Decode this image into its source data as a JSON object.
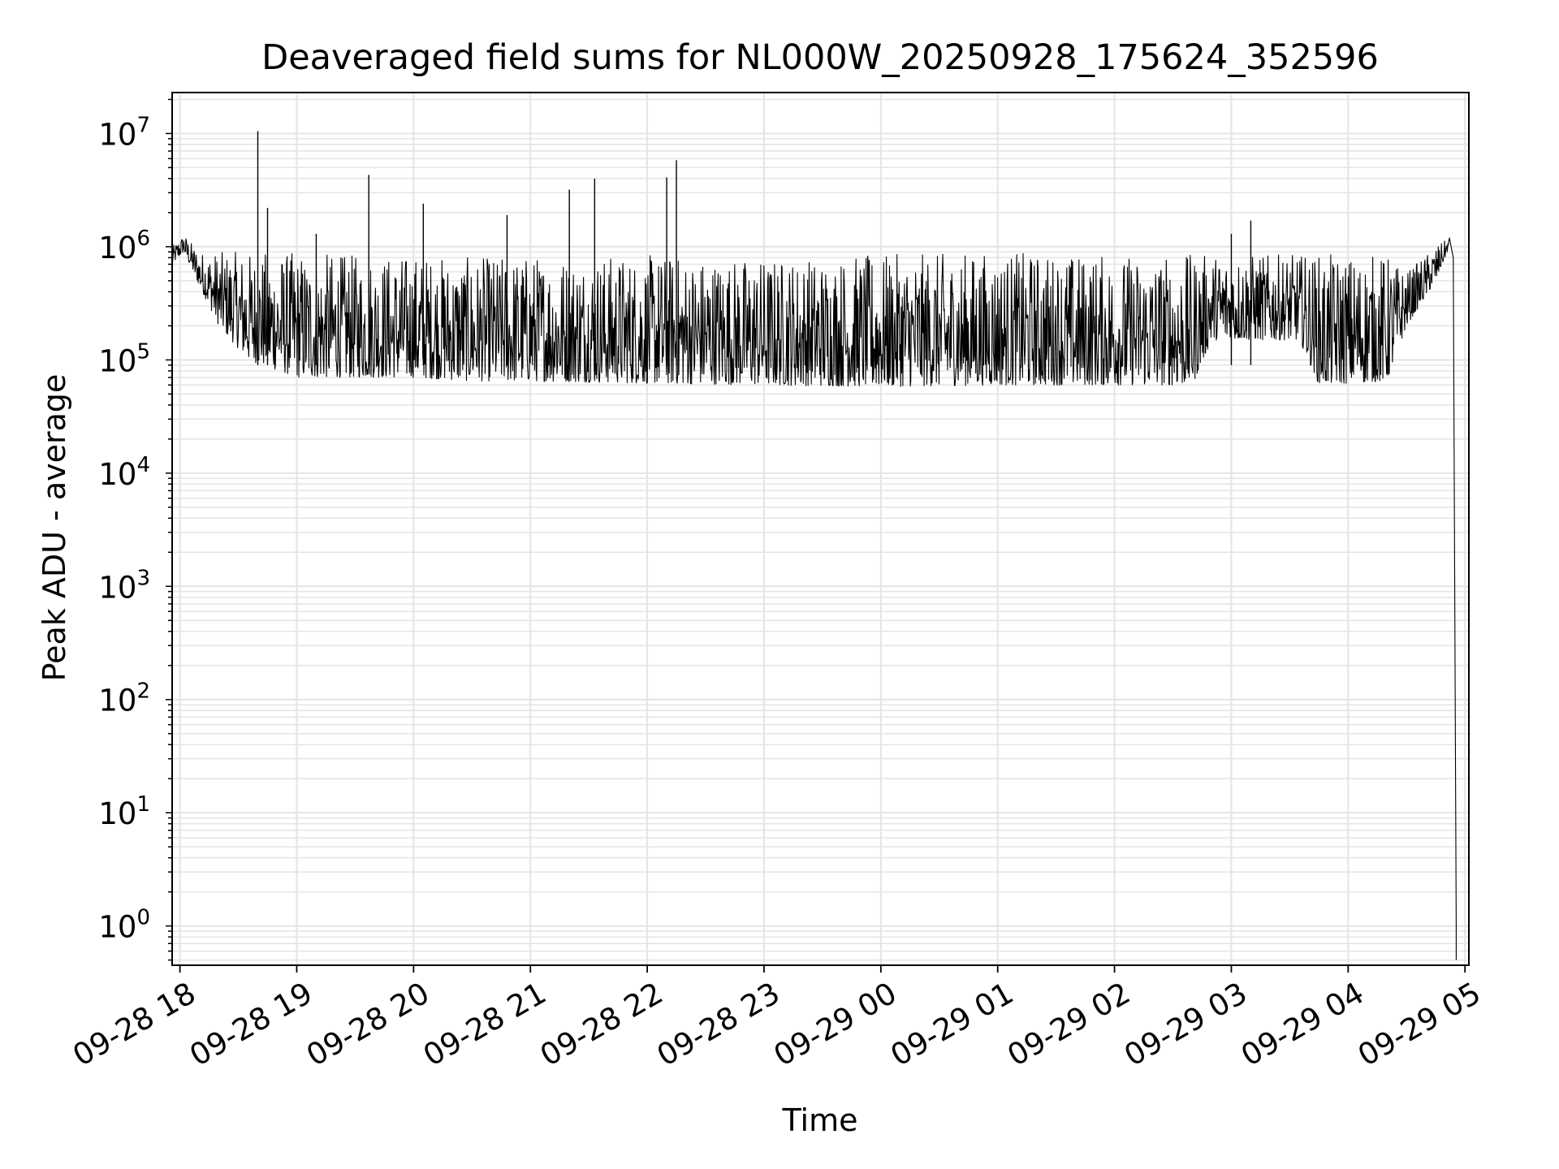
{
  "chart_data": {
    "type": "line",
    "title": "Deaveraged field sums for NL000W_20250928_175624_352596",
    "xlabel": "Time",
    "ylabel": "Peak ADU - average",
    "yscale": "log",
    "ylim": [
      0.45,
      23000000
    ],
    "xlim": [
      "2025-09-28T17:56:00",
      "2025-09-29T05:02:00"
    ],
    "grid": true,
    "legend": "none",
    "line_color": "#000000",
    "grid_color": "#e4e4e4",
    "xticks": [
      {
        "value": "2025-09-28T18:00:00",
        "label": "09-28 18"
      },
      {
        "value": "2025-09-28T19:00:00",
        "label": "09-28 19"
      },
      {
        "value": "2025-09-28T20:00:00",
        "label": "09-28 20"
      },
      {
        "value": "2025-09-28T21:00:00",
        "label": "09-28 21"
      },
      {
        "value": "2025-09-28T22:00:00",
        "label": "09-28 22"
      },
      {
        "value": "2025-09-28T23:00:00",
        "label": "09-28 23"
      },
      {
        "value": "2025-09-29T00:00:00",
        "label": "09-29 00"
      },
      {
        "value": "2025-09-29T01:00:00",
        "label": "09-29 01"
      },
      {
        "value": "2025-09-29T02:00:00",
        "label": "09-29 02"
      },
      {
        "value": "2025-09-29T03:00:00",
        "label": "09-29 03"
      },
      {
        "value": "2025-09-29T04:00:00",
        "label": "09-29 04"
      },
      {
        "value": "2025-09-29T05:00:00",
        "label": "09-29 05"
      }
    ],
    "yticks": [
      {
        "value": 1,
        "label_base": "10",
        "label_exp": "0"
      },
      {
        "value": 10,
        "label_base": "10",
        "label_exp": "1"
      },
      {
        "value": 100,
        "label_base": "10",
        "label_exp": "2"
      },
      {
        "value": 1000,
        "label_base": "10",
        "label_exp": "3"
      },
      {
        "value": 10000,
        "label_base": "10",
        "label_exp": "4"
      },
      {
        "value": 100000,
        "label_base": "10",
        "label_exp": "5"
      },
      {
        "value": 1000000,
        "label_base": "10",
        "label_exp": "6"
      },
      {
        "value": 10000000,
        "label_base": "10",
        "label_exp": "7"
      }
    ],
    "series": [
      {
        "envelope": [
          {
            "time": "2025-09-28T17:56:00",
            "low": 700000,
            "high": 1000000
          },
          {
            "time": "2025-09-28T18:02:00",
            "low": 900000,
            "high": 1300000
          },
          {
            "time": "2025-09-28T18:10:00",
            "low": 450000,
            "high": 900000
          },
          {
            "time": "2025-09-28T18:20:00",
            "low": 200000,
            "high": 900000
          },
          {
            "time": "2025-09-28T18:35:00",
            "low": 100000,
            "high": 900000
          },
          {
            "time": "2025-09-28T19:00:00",
            "low": 70000,
            "high": 900000
          },
          {
            "time": "2025-09-28T19:30:00",
            "low": 70000,
            "high": 850000
          },
          {
            "time": "2025-09-28T20:00:00",
            "low": 70000,
            "high": 850000
          },
          {
            "time": "2025-09-28T20:30:00",
            "low": 65000,
            "high": 800000
          },
          {
            "time": "2025-09-28T21:00:00",
            "low": 65000,
            "high": 850000
          },
          {
            "time": "2025-09-28T22:00:00",
            "low": 62000,
            "high": 850000
          },
          {
            "time": "2025-09-28T23:00:00",
            "low": 60000,
            "high": 800000
          },
          {
            "time": "2025-09-29T00:00:00",
            "low": 58000,
            "high": 850000
          },
          {
            "time": "2025-09-29T01:00:00",
            "low": 60000,
            "high": 900000
          },
          {
            "time": "2025-09-29T02:00:00",
            "low": 60000,
            "high": 850000
          },
          {
            "time": "2025-09-29T02:40:00",
            "low": 60000,
            "high": 850000
          },
          {
            "time": "2025-09-29T02:50:00",
            "low": 150000,
            "high": 850000
          },
          {
            "time": "2025-09-29T03:35:00",
            "low": 150000,
            "high": 850000
          },
          {
            "time": "2025-09-29T03:45:00",
            "low": 60000,
            "high": 850000
          },
          {
            "time": "2025-09-29T04:20:00",
            "low": 65000,
            "high": 850000
          },
          {
            "time": "2025-09-29T04:30:00",
            "low": 200000,
            "high": 600000
          },
          {
            "time": "2025-09-29T04:45:00",
            "low": 500000,
            "high": 1000000
          },
          {
            "time": "2025-09-29T04:52:00",
            "low": 1000000,
            "high": 1200000
          }
        ],
        "spikes": [
          {
            "time": "2025-09-28T18:40:00",
            "value": 10500000
          },
          {
            "time": "2025-09-28T18:45:00",
            "value": 2200000
          },
          {
            "time": "2025-09-28T19:10:00",
            "value": 1300000
          },
          {
            "time": "2025-09-28T19:37:00",
            "value": 4300000
          },
          {
            "time": "2025-09-28T20:05:00",
            "value": 2400000
          },
          {
            "time": "2025-09-28T20:48:00",
            "value": 1900000
          },
          {
            "time": "2025-09-28T21:20:00",
            "value": 3200000
          },
          {
            "time": "2025-09-28T21:33:00",
            "value": 4000000
          },
          {
            "time": "2025-09-28T22:10:00",
            "value": 4100000
          },
          {
            "time": "2025-09-28T22:15:00",
            "value": 5800000
          },
          {
            "time": "2025-09-29T03:10:00",
            "value": 1700000
          },
          {
            "time": "2025-09-29T03:00:00",
            "value": 1300000
          }
        ],
        "end": [
          {
            "time": "2025-09-29T04:52:00",
            "value": 1200000
          },
          {
            "time": "2025-09-29T04:54:00",
            "value": 800000
          },
          {
            "time": "2025-09-29T04:55:30",
            "value": 1
          },
          {
            "time": "2025-09-29T04:55:30",
            "value": 0.5
          }
        ]
      }
    ]
  }
}
